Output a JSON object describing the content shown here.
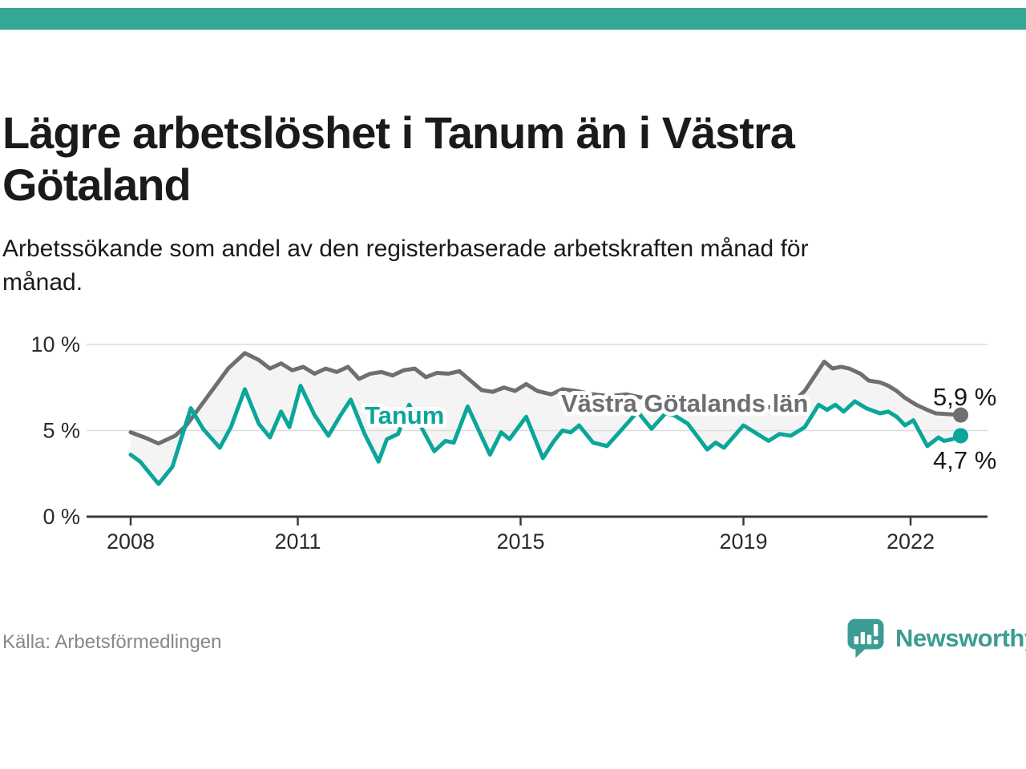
{
  "header": {
    "title": "Lägre arbetslöshet i Tanum än i Västra Götaland",
    "subtitle": "Arbetssökande som andel av den registerbaserade arbetskraften månad för månad."
  },
  "footer": {
    "source": "Källa: Arbetsförmedlingen",
    "brand_name": "Newsworthy"
  },
  "theme": {
    "top_bar_color": "#35a795",
    "brand_color": "#3b9c94",
    "title_color": "#1a1a1a",
    "axis_color": "#3a3a3a",
    "gridline_color": "#dcdcdc",
    "tick_label_color": "#2b2b2b",
    "end_label_color": "#1a1a1a"
  },
  "chart_data": {
    "type": "line",
    "title": "Lägre arbetslöshet i Tanum än i Västra Götaland",
    "xlabel": "",
    "ylabel": "",
    "grid": "horizontal",
    "legend_position": "inline-labels",
    "xlim": [
      2007.2,
      2023.4
    ],
    "ylim": [
      0,
      10.5
    ],
    "x_ticks": [
      {
        "value": 2008,
        "label": "2008"
      },
      {
        "value": 2011,
        "label": "2011"
      },
      {
        "value": 2015,
        "label": "2015"
      },
      {
        "value": 2019,
        "label": "2019"
      },
      {
        "value": 2022,
        "label": "2022"
      }
    ],
    "y_ticks": [
      {
        "value": 0,
        "label": "0 %"
      },
      {
        "value": 5,
        "label": "5 %"
      },
      {
        "value": 10,
        "label": "10 %"
      }
    ],
    "fill_between_color": "#f4f4f4",
    "series": [
      {
        "id": "vastra-gotaland",
        "name": "Västra Götalands län",
        "color": "#6e6e73",
        "end_value": 5.9,
        "end_label": "5,9 %",
        "points": [
          [
            2008.0,
            4.9
          ],
          [
            2008.25,
            4.6
          ],
          [
            2008.5,
            4.25
          ],
          [
            2008.8,
            4.7
          ],
          [
            2009.0,
            5.3
          ],
          [
            2009.25,
            6.4
          ],
          [
            2009.5,
            7.5
          ],
          [
            2009.75,
            8.6
          ],
          [
            2010.05,
            9.5
          ],
          [
            2010.3,
            9.1
          ],
          [
            2010.5,
            8.6
          ],
          [
            2010.7,
            8.9
          ],
          [
            2010.9,
            8.5
          ],
          [
            2011.1,
            8.7
          ],
          [
            2011.3,
            8.3
          ],
          [
            2011.5,
            8.6
          ],
          [
            2011.7,
            8.4
          ],
          [
            2011.9,
            8.7
          ],
          [
            2012.1,
            8.0
          ],
          [
            2012.3,
            8.3
          ],
          [
            2012.5,
            8.4
          ],
          [
            2012.7,
            8.2
          ],
          [
            2012.9,
            8.5
          ],
          [
            2013.1,
            8.6
          ],
          [
            2013.3,
            8.1
          ],
          [
            2013.5,
            8.35
          ],
          [
            2013.7,
            8.3
          ],
          [
            2013.9,
            8.45
          ],
          [
            2014.1,
            7.9
          ],
          [
            2014.3,
            7.35
          ],
          [
            2014.5,
            7.25
          ],
          [
            2014.7,
            7.5
          ],
          [
            2014.9,
            7.3
          ],
          [
            2015.1,
            7.7
          ],
          [
            2015.3,
            7.3
          ],
          [
            2015.55,
            7.1
          ],
          [
            2015.75,
            7.4
          ],
          [
            2016.0,
            7.3
          ],
          [
            2016.3,
            7.1
          ],
          [
            2016.6,
            7.0
          ],
          [
            2016.9,
            7.1
          ],
          [
            2017.2,
            6.9
          ],
          [
            2017.5,
            6.8
          ],
          [
            2017.8,
            6.7
          ],
          [
            2018.1,
            6.5
          ],
          [
            2018.4,
            6.3
          ],
          [
            2018.7,
            6.4
          ],
          [
            2019.0,
            6.5
          ],
          [
            2019.3,
            6.3
          ],
          [
            2019.6,
            6.4
          ],
          [
            2019.9,
            6.7
          ],
          [
            2020.1,
            7.3
          ],
          [
            2020.45,
            9.0
          ],
          [
            2020.6,
            8.6
          ],
          [
            2020.75,
            8.7
          ],
          [
            2020.9,
            8.6
          ],
          [
            2021.1,
            8.3
          ],
          [
            2021.25,
            7.9
          ],
          [
            2021.45,
            7.8
          ],
          [
            2021.6,
            7.6
          ],
          [
            2021.75,
            7.3
          ],
          [
            2021.9,
            6.9
          ],
          [
            2022.1,
            6.5
          ],
          [
            2022.3,
            6.2
          ],
          [
            2022.45,
            6.0
          ],
          [
            2022.7,
            5.95
          ],
          [
            2022.9,
            5.9
          ]
        ]
      },
      {
        "id": "tanum",
        "name": "Tanum",
        "color": "#0ba69a",
        "end_value": 4.7,
        "end_label": "4,7 %",
        "points": [
          [
            2008.0,
            3.6
          ],
          [
            2008.17,
            3.2
          ],
          [
            2008.5,
            1.9
          ],
          [
            2008.75,
            2.9
          ],
          [
            2009.08,
            6.3
          ],
          [
            2009.3,
            5.1
          ],
          [
            2009.6,
            4.0
          ],
          [
            2009.8,
            5.2
          ],
          [
            2010.05,
            7.4
          ],
          [
            2010.3,
            5.4
          ],
          [
            2010.5,
            4.6
          ],
          [
            2010.7,
            6.1
          ],
          [
            2010.85,
            5.2
          ],
          [
            2011.05,
            7.6
          ],
          [
            2011.3,
            5.9
          ],
          [
            2011.55,
            4.7
          ],
          [
            2011.75,
            5.8
          ],
          [
            2011.95,
            6.8
          ],
          [
            2012.2,
            4.8
          ],
          [
            2012.45,
            3.2
          ],
          [
            2012.6,
            4.5
          ],
          [
            2012.8,
            4.8
          ],
          [
            2013.0,
            6.5
          ],
          [
            2013.2,
            5.3
          ],
          [
            2013.45,
            3.8
          ],
          [
            2013.65,
            4.4
          ],
          [
            2013.8,
            4.3
          ],
          [
            2014.05,
            6.4
          ],
          [
            2014.25,
            5.0
          ],
          [
            2014.45,
            3.6
          ],
          [
            2014.65,
            4.9
          ],
          [
            2014.8,
            4.5
          ],
          [
            2015.1,
            5.8
          ],
          [
            2015.4,
            3.4
          ],
          [
            2015.6,
            4.4
          ],
          [
            2015.75,
            5.0
          ],
          [
            2015.9,
            4.9
          ],
          [
            2016.05,
            5.3
          ],
          [
            2016.3,
            4.3
          ],
          [
            2016.55,
            4.1
          ],
          [
            2016.8,
            5.0
          ],
          [
            2017.1,
            6.1
          ],
          [
            2017.35,
            5.1
          ],
          [
            2017.6,
            6.0
          ],
          [
            2017.75,
            5.9
          ],
          [
            2018.0,
            5.4
          ],
          [
            2018.35,
            3.9
          ],
          [
            2018.5,
            4.3
          ],
          [
            2018.65,
            4.0
          ],
          [
            2019.0,
            5.3
          ],
          [
            2019.2,
            4.9
          ],
          [
            2019.45,
            4.4
          ],
          [
            2019.65,
            4.8
          ],
          [
            2019.85,
            4.7
          ],
          [
            2020.1,
            5.2
          ],
          [
            2020.35,
            6.5
          ],
          [
            2020.5,
            6.2
          ],
          [
            2020.65,
            6.5
          ],
          [
            2020.8,
            6.1
          ],
          [
            2021.0,
            6.7
          ],
          [
            2021.2,
            6.3
          ],
          [
            2021.45,
            6.0
          ],
          [
            2021.6,
            6.1
          ],
          [
            2021.75,
            5.8
          ],
          [
            2021.9,
            5.3
          ],
          [
            2022.05,
            5.6
          ],
          [
            2022.3,
            4.1
          ],
          [
            2022.5,
            4.6
          ],
          [
            2022.6,
            4.4
          ],
          [
            2022.75,
            4.5
          ],
          [
            2022.9,
            4.7
          ]
        ]
      }
    ]
  }
}
